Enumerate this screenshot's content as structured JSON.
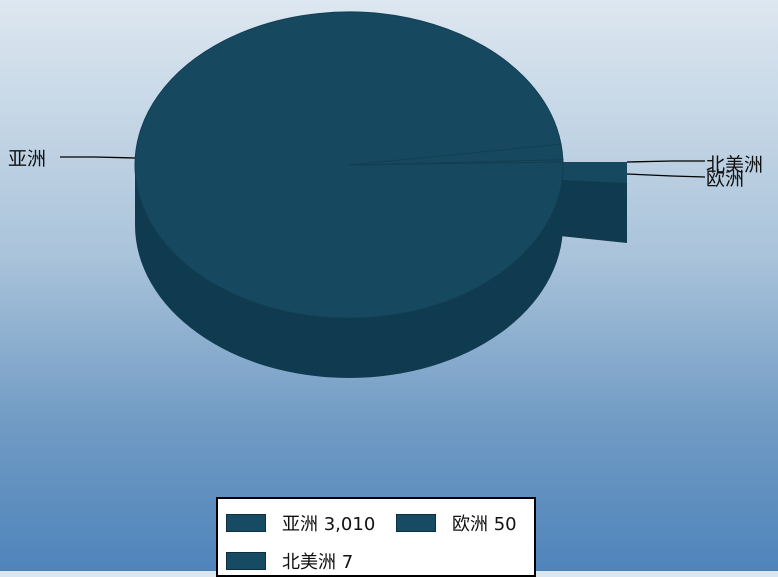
{
  "chart_data": {
    "type": "pie",
    "style": "3d",
    "title": "",
    "slices": [
      {
        "label": "亚洲",
        "value": 3010
      },
      {
        "label": "欧洲",
        "value": 50
      },
      {
        "label": "北美洲",
        "value": 7
      }
    ],
    "legend": {
      "placement": "bottom",
      "items": [
        {
          "name": "亚洲",
          "value_text": "3,010"
        },
        {
          "name": "欧洲",
          "value_text": "50"
        },
        {
          "name": "北美洲",
          "value_text": "7"
        }
      ]
    },
    "colors": {
      "top": "#16495f",
      "side": "#0f3a4f",
      "edge": "#123f54"
    }
  }
}
